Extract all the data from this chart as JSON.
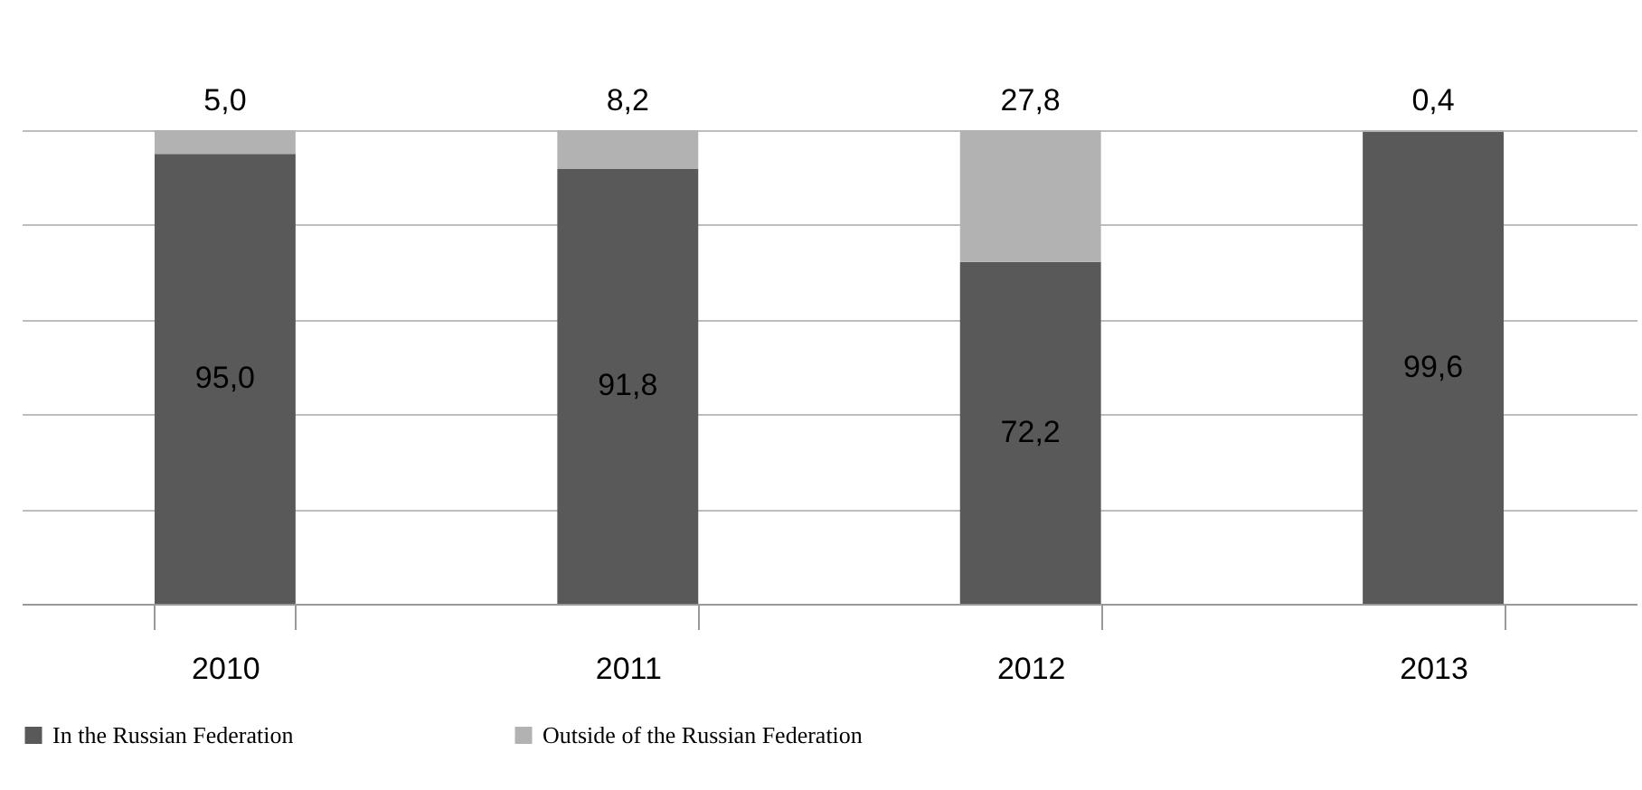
{
  "chart_data": {
    "type": "bar",
    "stacked": true,
    "categories": [
      "2010",
      "2011",
      "2012",
      "2013"
    ],
    "series": [
      {
        "name": "In the Russian Federation",
        "color": "#595959",
        "values": [
          95.0,
          91.8,
          72.2,
          99.6
        ],
        "value_labels": [
          "95,0",
          "91,8",
          "72,2",
          "99,6"
        ]
      },
      {
        "name": "Outside of the Russian Federation",
        "color": "#b2b2b2",
        "values": [
          5.0,
          8.2,
          27.8,
          0.4
        ],
        "value_labels": [
          "5,0",
          "8,2",
          "27,8",
          "0,4"
        ]
      }
    ],
    "ylim": [
      0,
      100
    ],
    "yticks": [
      {
        "value": 0,
        "label": null
      },
      {
        "value": 20,
        "label": null
      },
      {
        "value": 40,
        "label": null
      },
      {
        "value": 60,
        "label": null
      },
      {
        "value": 80,
        "label": null
      },
      {
        "value": 100,
        "label": null
      }
    ],
    "grid": "y",
    "legend": "bottom left"
  }
}
